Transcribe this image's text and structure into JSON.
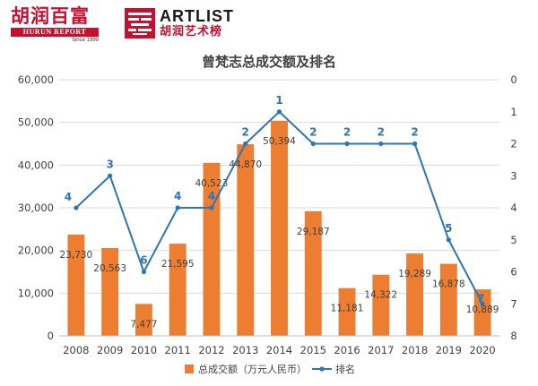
{
  "branding": {
    "hurun_cn": "胡润百富",
    "hurun_en": "HURUN REPORT",
    "hurun_since": "Since 1999",
    "artlist_word": "ARTLIST",
    "artlist_cn": "胡润艺术榜"
  },
  "chart_data": {
    "type": "bar+line",
    "title": "曾梵志总成交额及排名",
    "categories": [
      "2008",
      "2009",
      "2010",
      "2011",
      "2012",
      "2013",
      "2014",
      "2015",
      "2016",
      "2017",
      "2018",
      "2019",
      "2020"
    ],
    "series": [
      {
        "name": "总成交额（万元人民币）",
        "type": "bar",
        "axis": "left",
        "color": "#ed7d31",
        "values": [
          23730,
          20563,
          7477,
          21595,
          40523,
          44870,
          50394,
          29187,
          11181,
          14322,
          19289,
          16878,
          10889
        ],
        "labels": [
          "23,730",
          "20,563",
          "7,477",
          "21,595",
          "40,523",
          "44,870",
          "50,394",
          "29,187",
          "11,181",
          "14,322",
          "19,289",
          "16,878",
          "10,889"
        ]
      },
      {
        "name": "排名",
        "type": "line",
        "axis": "right",
        "color": "#2e75b6",
        "values": [
          4,
          3,
          6,
          4,
          4,
          2,
          1,
          2,
          2,
          2,
          2,
          5,
          7
        ]
      }
    ],
    "yleft": {
      "min": 0,
      "max": 60000,
      "ticks": [
        "0",
        "10,000",
        "20,000",
        "30,000",
        "40,000",
        "50,000",
        "60,000"
      ]
    },
    "yright": {
      "min": 0,
      "max": 8,
      "inverted": true,
      "ticks": [
        "0",
        "1",
        "2",
        "3",
        "4",
        "5",
        "6",
        "7",
        "8"
      ]
    },
    "grid": true,
    "legend": "bottom"
  }
}
